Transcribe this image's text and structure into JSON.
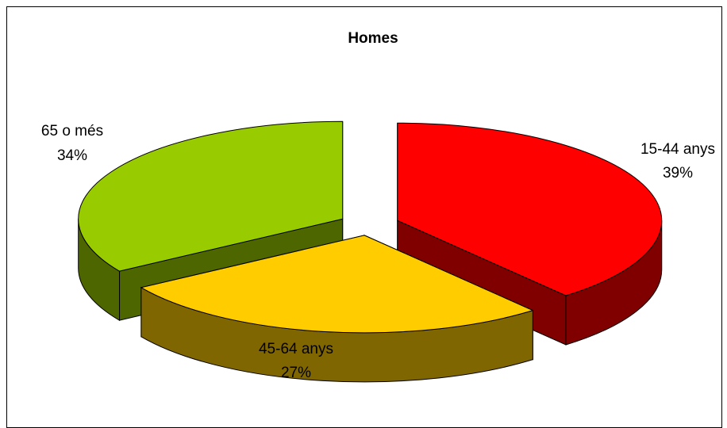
{
  "chart_data": {
    "type": "pie",
    "three_d": true,
    "title": "Homes",
    "categories": [
      "15-44 anys",
      "45-64 anys",
      "65 o més"
    ],
    "values": [
      39,
      27,
      34
    ],
    "unit": "%",
    "value_labels": [
      "39%",
      "27%",
      "34%"
    ],
    "exploded": true,
    "legend": "none",
    "colors": {
      "15-44 anys": {
        "top": "#FF0000",
        "side": "#800000"
      },
      "45-64 anys": {
        "top": "#FFCC00",
        "side": "#806600"
      },
      "65 o més": {
        "top": "#99CC00",
        "side": "#4D6600"
      }
    }
  }
}
